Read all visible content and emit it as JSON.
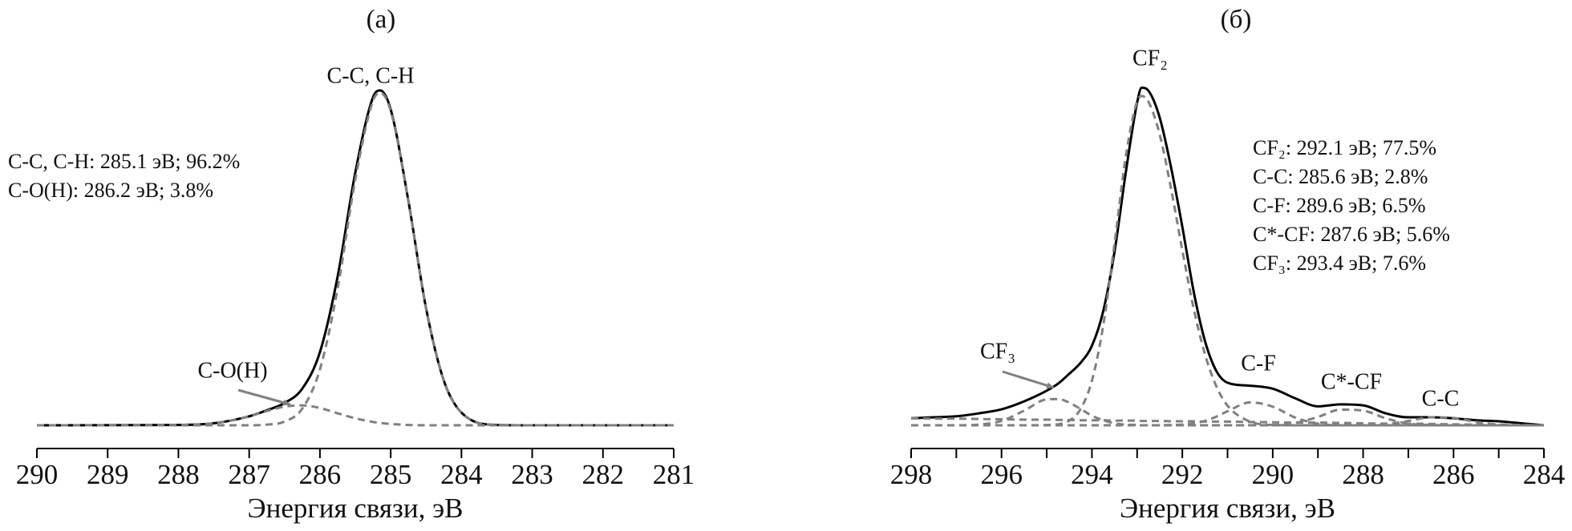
{
  "chart_data": [
    {
      "type": "line",
      "title": "(а)",
      "x_label": "Энергия связи, эВ",
      "xlim": [
        290,
        281
      ],
      "xticks": [
        290,
        289,
        288,
        287,
        286,
        285,
        284,
        283,
        282,
        281
      ],
      "ylim": [
        0,
        105
      ],
      "x": [
        290,
        288,
        287.5,
        287,
        286.75,
        286.5,
        286.25,
        286,
        285.75,
        285.5,
        285.25,
        285.15,
        285,
        284.75,
        284.5,
        284.25,
        284,
        283.5,
        283,
        281
      ],
      "series": [
        {
          "color": "#000000",
          "dash": false,
          "values": [
            0,
            0.1,
            0.6,
            2.7,
            4.5,
            6.7,
            11.0,
            22.0,
            44.7,
            76.0,
            98.6,
            100.7,
            95.0,
            67.5,
            35.2,
            13.5,
            3.8,
            0.1,
            0,
            0
          ]
        },
        {
          "color": "#808080",
          "dash": true,
          "values": [
            0,
            0,
            0,
            0,
            0.2,
            1.1,
            5.0,
            16.8,
            41.1,
            73.9,
            97.6,
            100,
            94.6,
            67.4,
            35.2,
            13.5,
            3.8,
            0.1,
            0,
            0
          ]
        },
        {
          "color": "#808080",
          "dash": true,
          "values": [
            0,
            0.1,
            0.6,
            2.7,
            4.3,
            5.6,
            6.0,
            5.2,
            3.6,
            2.1,
            1.0,
            0.7,
            0.4,
            0.1,
            0,
            0,
            0,
            0,
            0,
            0
          ]
        }
      ],
      "peak_labels": [
        "C-C, C-H",
        "C-O(H)"
      ],
      "notes": [
        "C-C, C-H: 285.1 эВ; 96.2%",
        "C-O(H): 286.2 эВ; 3.8%"
      ]
    },
    {
      "type": "line",
      "title": "(б)",
      "x_label": "Энергия связи, эВ",
      "xlim": [
        298,
        284
      ],
      "xticks": [
        298,
        296,
        294,
        292,
        290,
        288,
        286,
        284
      ],
      "xminorticks": [
        297,
        295,
        293,
        291,
        289,
        287,
        285
      ],
      "ylim": [
        0,
        105
      ],
      "x": [
        298,
        297.5,
        297,
        296.5,
        296,
        295.5,
        295,
        294.75,
        294.5,
        294.25,
        294,
        293.75,
        293.5,
        293.25,
        293,
        292.9,
        292.75,
        292.5,
        292.25,
        292,
        291.75,
        291.5,
        291.25,
        291,
        290.5,
        290,
        289.5,
        289,
        288.5,
        288,
        287.5,
        287,
        286.5,
        286,
        285.5,
        285,
        284.5,
        284
      ],
      "series": [
        {
          "color": "#000000",
          "dash": false,
          "values": [
            2.1,
            2.4,
            2.7,
            3.6,
            4.8,
            7.2,
            10.4,
            12.5,
            15.5,
            18.8,
            23.9,
            34.3,
            52.2,
            76.1,
            97.0,
            101.5,
            100.6,
            92.5,
            77.6,
            59.7,
            40.3,
            25.4,
            16.4,
            12.8,
            11.9,
            11.0,
            8.1,
            5.7,
            6.3,
            6.0,
            3.6,
            2.4,
            2.4,
            2.1,
            1.5,
            1.2,
            0.6,
            0
          ]
        },
        {
          "color": "#808080",
          "dash": true,
          "values": [
            0,
            0,
            0,
            0,
            0,
            0,
            0.1,
            0.3,
            1.4,
            4.9,
            13.4,
            30.0,
            54.6,
            80.9,
            97.4,
            99,
            97.3,
            87.4,
            71.2,
            52.6,
            35.2,
            21.4,
            11.8,
            5.9,
            1.1,
            0.1,
            0,
            0,
            0,
            0,
            0,
            0,
            0,
            0,
            0,
            0,
            0,
            0
          ]
        },
        {
          "color": "#808080",
          "dash": true,
          "values": [
            0,
            0,
            0,
            0.2,
            1.3,
            4.4,
            7.8,
            7.9,
            6.8,
            4.9,
            2.9,
            1.5,
            0.6,
            0.2,
            0.1,
            0,
            0,
            0,
            0,
            0,
            0,
            0,
            0,
            0,
            0,
            0,
            0,
            0,
            0,
            0,
            0,
            0,
            0,
            0,
            0,
            0,
            0,
            0
          ]
        },
        {
          "color": "#808080",
          "dash": true,
          "values": [
            0,
            0,
            0,
            0,
            0,
            0,
            0,
            0,
            0,
            0,
            0,
            0,
            0,
            0,
            0,
            0,
            0,
            0,
            0.1,
            0.2,
            0.6,
            1.3,
            2.6,
            4.2,
            6.9,
            5.6,
            2.3,
            0.5,
            0,
            0,
            0,
            0,
            0,
            0,
            0,
            0,
            0,
            0
          ]
        },
        {
          "color": "#808080",
          "dash": true,
          "values": [
            0,
            0,
            0,
            0,
            0,
            0,
            0,
            0,
            0,
            0,
            0,
            0,
            0,
            0,
            0,
            0,
            0,
            0,
            0,
            0,
            0,
            0,
            0,
            0,
            0,
            0.1,
            0.7,
            2.5,
            4.7,
            4.4,
            2.1,
            0.5,
            0.1,
            0,
            0,
            0,
            0,
            0
          ]
        },
        {
          "color": "#808080",
          "dash": true,
          "values": [
            0,
            0,
            0,
            0,
            0,
            0,
            0,
            0,
            0,
            0,
            0,
            0,
            0,
            0,
            0,
            0,
            0,
            0,
            0,
            0,
            0,
            0,
            0,
            0,
            0,
            0,
            0,
            0,
            0,
            0,
            0.3,
            1.3,
            2.4,
            2.2,
            1.0,
            0.2,
            0,
            0
          ]
        },
        {
          "color": "#808080",
          "dash": true,
          "values": [
            2.1,
            2.0,
            2.0,
            1.9,
            1.8,
            1.7,
            1.7,
            1.6,
            1.6,
            1.5,
            1.5,
            1.5,
            1.4,
            1.4,
            1.4,
            1.3,
            1.3,
            1.3,
            1.2,
            1.2,
            1.2,
            1.1,
            1.1,
            1.1,
            1.0,
            0.9,
            0.8,
            0.8,
            0.7,
            0.6,
            0.5,
            0.5,
            0.4,
            0.3,
            0.2,
            0.2,
            0.1,
            0
          ]
        }
      ],
      "peak_labels": [
        "CF₂",
        "CF₃",
        "C-F",
        "C*-CF",
        "C-C"
      ],
      "notes": [
        "CF₂: 292.1 эВ; 77.5%",
        "C-C: 285.6 эВ; 2.8%",
        "C-F: 289.6 эВ; 6.5%",
        "C*-CF: 287.6 эВ; 5.6%",
        "CF₃: 293.4 эВ; 7.6%"
      ]
    }
  ]
}
